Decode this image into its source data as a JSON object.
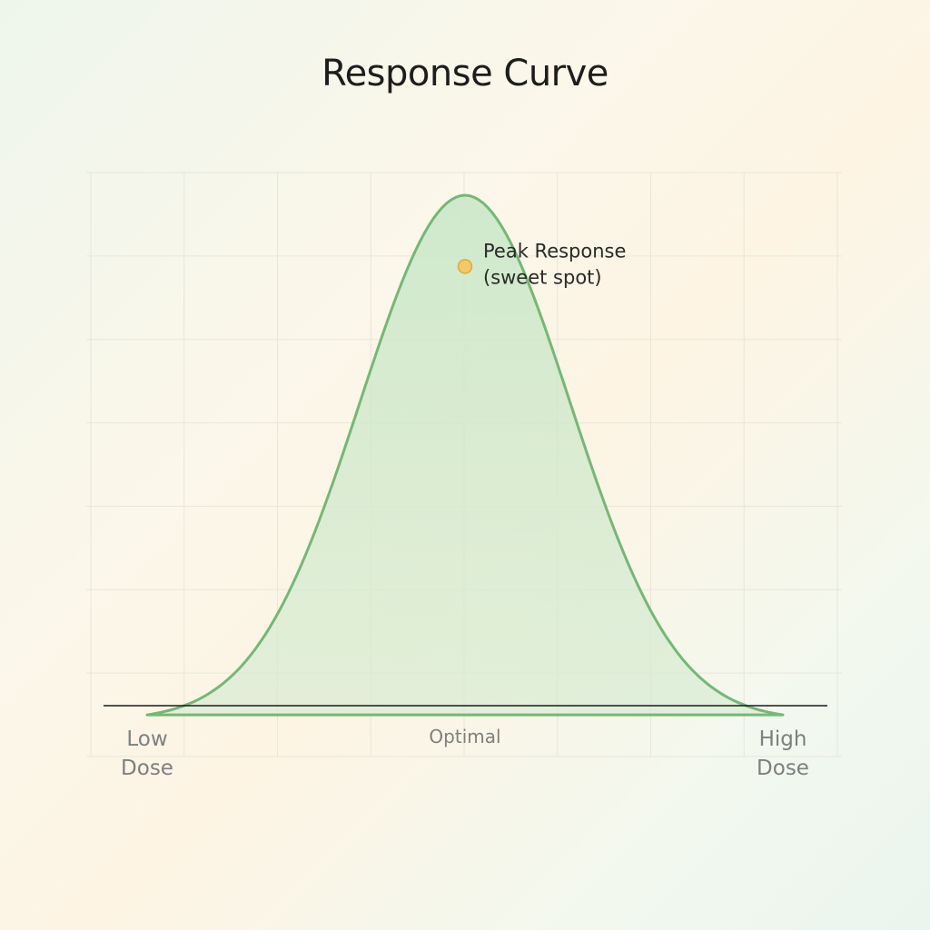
{
  "chart_data": {
    "type": "area",
    "title": "Response Curve",
    "xlabel": "",
    "ylabel": "",
    "x_ticks": [
      {
        "label_lines": [
          "Low",
          "Dose"
        ],
        "value": 0
      },
      {
        "label_lines": [
          "Optimal"
        ],
        "value": 0.5
      },
      {
        "label_lines": [
          "High",
          "Dose"
        ],
        "value": 1
      }
    ],
    "series": [
      {
        "curve": "bell",
        "peak_x": 0.5,
        "peak_y": 1.0,
        "x": [
          0,
          0.05,
          0.1,
          0.15,
          0.2,
          0.25,
          0.3,
          0.35,
          0.4,
          0.45,
          0.5,
          0.55,
          0.6,
          0.65,
          0.7,
          0.75,
          0.8,
          0.85,
          0.9,
          0.95,
          1
        ],
        "y": [
          0.0,
          0.0,
          0.04,
          0.12,
          0.25,
          0.42,
          0.62,
          0.81,
          0.93,
          0.99,
          1.0,
          0.99,
          0.93,
          0.81,
          0.62,
          0.42,
          0.25,
          0.12,
          0.04,
          0.0,
          0.0
        ]
      }
    ],
    "annotation": {
      "lines": [
        "Peak Response",
        "(sweet spot)"
      ],
      "x": 0.5,
      "y": 0.88
    },
    "grid": true,
    "colors": {
      "line": "#76b776",
      "fill": "#cfe7cc",
      "point": "#f3c867",
      "point_stroke": "#e2a93b",
      "baseline": "#1a1a1a"
    }
  }
}
